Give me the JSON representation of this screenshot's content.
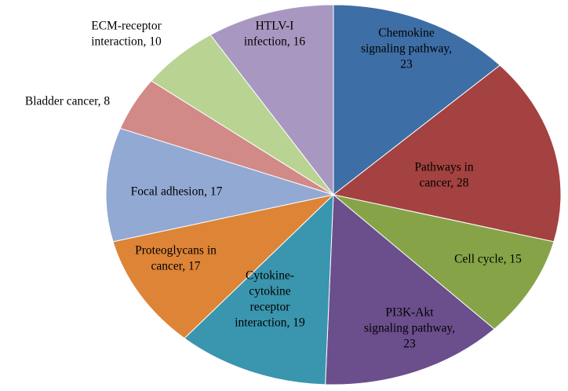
{
  "chart_data": {
    "type": "pie",
    "title": "",
    "slices": [
      {
        "label": "Chemokine signaling pathway, 23",
        "value": 23,
        "color": "#3E6EA6",
        "label_lines": [
          "Chemokine",
          "signaling pathway,",
          "23"
        ]
      },
      {
        "label": "Pathways in cancer, 28",
        "value": 28,
        "color": "#A34240",
        "label_lines": [
          "Pathways in",
          "cancer, 28"
        ]
      },
      {
        "label": "Cell cycle, 15",
        "value": 15,
        "color": "#86A447",
        "label_lines": [
          "Cell cycle, 15"
        ]
      },
      {
        "label": "PI3K-Akt signaling pathway, 23",
        "value": 23,
        "color": "#6B4E8C",
        "label_lines": [
          "PI3K-Akt",
          "signaling pathway,",
          "23"
        ]
      },
      {
        "label": "Cytokine-cytokine receptor interaction, 19",
        "value": 19,
        "color": "#3A95AE",
        "label_lines": [
          "Cytokine-",
          "cytokine",
          "receptor",
          "interaction, 19"
        ]
      },
      {
        "label": "Proteoglycans in cancer, 17",
        "value": 17,
        "color": "#DD8437",
        "label_lines": [
          "Proteoglycans in",
          "cancer, 17"
        ]
      },
      {
        "label": "Focal adhesion, 17",
        "value": 17,
        "color": "#92A9D3",
        "label_lines": [
          "Focal adhesion, 17"
        ]
      },
      {
        "label": "Bladder cancer, 8",
        "value": 8,
        "color": "#D18A87",
        "label_lines": [
          "Bladder cancer, 8"
        ]
      },
      {
        "label": "ECM-receptor interaction, 10",
        "value": 10,
        "color": "#B9D392",
        "label_lines": [
          "ECM-receptor",
          "interaction, 10"
        ]
      },
      {
        "label": "HTLV-I infection, 16",
        "value": 16,
        "color": "#A898C1",
        "label_lines": [
          "HTLV-I",
          "infection, 16"
        ]
      }
    ]
  }
}
